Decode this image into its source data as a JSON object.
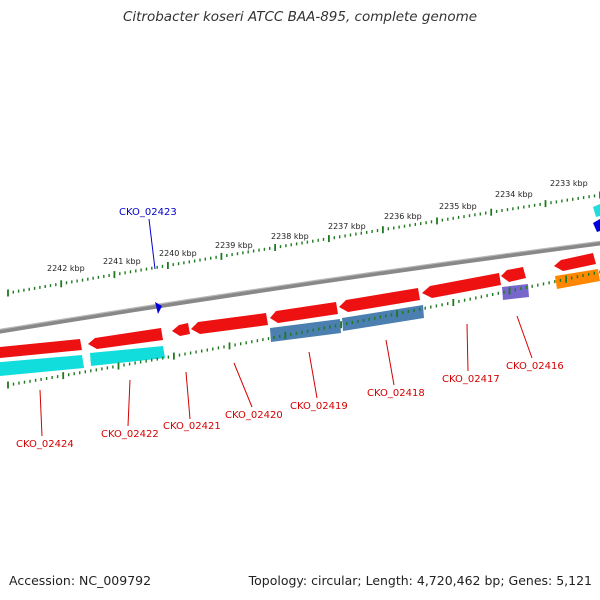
{
  "title": "Citrobacter koseri ATCC BAA-895, complete genome",
  "footer": {
    "accession": "Accession: NC_009792",
    "stats": "Topology: circular; Length: 4,720,462 bp; Genes: 5,121"
  },
  "colors": {
    "axis": "#808080",
    "ticks": "#1f7a1f",
    "label_red": "#d40000",
    "label_blue": "#0000cc",
    "gene_red": "#ee1111",
    "gene_cyan": "#11dddd",
    "gene_steel": "#4a7fb0",
    "gene_purple": "#7766cc",
    "gene_orange": "#ff8800",
    "gene_blue": "#0000dd"
  },
  "kbp_labels": [
    "2233 kbp",
    "2234 kbp",
    "2235 kbp",
    "2236 kbp",
    "2237 kbp",
    "2238 kbp",
    "2239 kbp",
    "2240 kbp",
    "2241 kbp",
    "2242 kbp"
  ],
  "gene_labels": [
    "CKO_02423",
    "CKO_02424",
    "CKO_02422",
    "CKO_02421",
    "CKO_02420",
    "CKO_02419",
    "CKO_02418",
    "CKO_02417",
    "CKO_02416"
  ]
}
